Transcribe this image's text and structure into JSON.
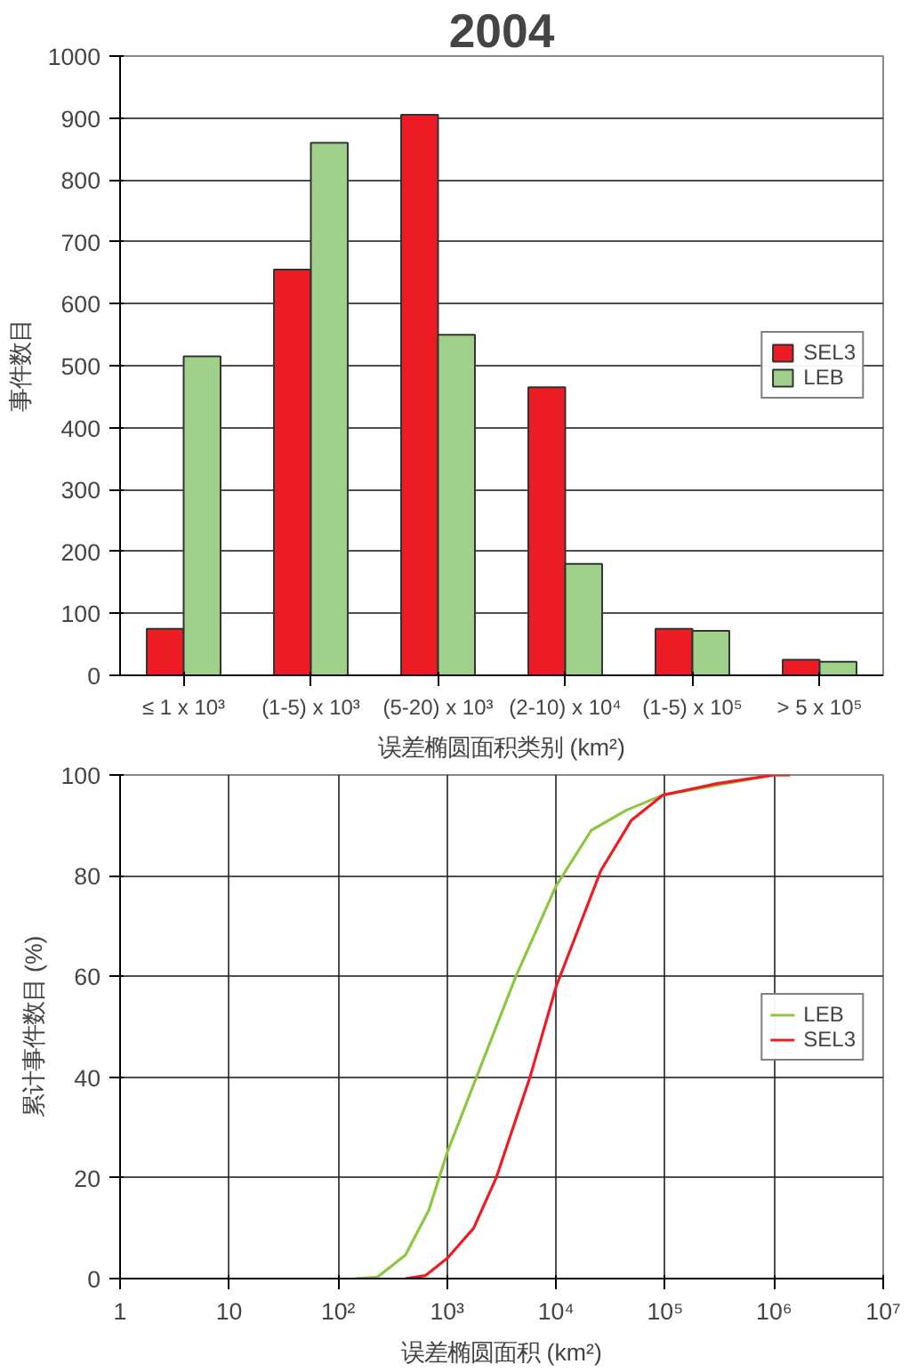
{
  "chart_data": [
    {
      "type": "bar",
      "title": "2004",
      "xlabel": "误差椭圆面积类别 (km²)",
      "ylabel": "事件数目",
      "categories": [
        "≤ 1 x 10³",
        "(1-5) x 10³",
        "(5-20) x 10³",
        "(2-10) x 10⁴",
        "(1-5) x 10⁵",
        "> 5 x 10⁵"
      ],
      "series": [
        {
          "name": "SEL3",
          "color": "#ed1c24",
          "values": [
            75,
            655,
            905,
            465,
            75,
            25
          ]
        },
        {
          "name": "LEB",
          "color": "#9fd18a",
          "values": [
            515,
            860,
            550,
            180,
            72,
            22
          ]
        }
      ],
      "ylim": [
        0,
        1000
      ],
      "yticks": [
        0,
        100,
        200,
        300,
        400,
        500,
        600,
        700,
        800,
        900,
        1000
      ],
      "grid": "y",
      "legend": "right"
    },
    {
      "type": "line",
      "xlabel": "误差椭圆面积 (km²)",
      "ylabel": "累计事件数目 (%)",
      "log": "x",
      "grid": true,
      "legend": "right",
      "xlim": [
        1,
        10000000
      ],
      "xticks": [
        1,
        10,
        {
          "value": 100,
          "label": "10²"
        },
        {
          "value": 1000,
          "label": "10³"
        },
        {
          "value": 10000,
          "label": "10⁴"
        },
        {
          "value": 100000,
          "label": "10⁵"
        },
        {
          "value": 1000000,
          "label": "10⁶"
        },
        {
          "value": 10000000,
          "label": "10⁷"
        }
      ],
      "ylim": [
        0,
        100
      ],
      "yticks": [
        0,
        20,
        40,
        60,
        80,
        100
      ],
      "series": [
        {
          "name": "LEB",
          "color": "#8dc63f",
          "x": [
            143,
            230,
            415,
            680,
            1000,
            1860,
            4270,
            10000,
            21000,
            44000,
            95000,
            300000,
            1000000,
            1400000
          ],
          "values": [
            0,
            0.3,
            4.7,
            13.6,
            25,
            40,
            60,
            78,
            89,
            93,
            96,
            98,
            100,
            100
          ]
        },
        {
          "name": "SEL3",
          "color": "#ed1c24",
          "x": [
            415,
            634,
            1000,
            1750,
            2820,
            5760,
            10000,
            25700,
            49000,
            95000,
            300000,
            1000000,
            1400000
          ],
          "values": [
            0,
            0.6,
            4,
            10,
            20,
            40,
            58,
            81,
            91,
            96,
            98.3,
            100,
            100
          ]
        }
      ]
    }
  ]
}
